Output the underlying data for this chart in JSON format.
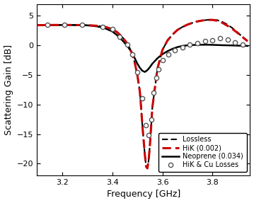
{
  "title": "",
  "xlabel": "Frequency [GHz]",
  "ylabel": "Scattering Gain [dB]",
  "xlim": [
    3.1,
    3.95
  ],
  "ylim": [
    -22,
    7
  ],
  "xticks": [
    3.2,
    3.4,
    3.6,
    3.8
  ],
  "yticks": [
    -20,
    -15,
    -10,
    -5,
    0,
    5
  ],
  "lossless_color": "#000000",
  "hik_color": "#cc0000",
  "neoprene_color": "#000000",
  "background": "#ffffff",
  "lossless_x": [
    3.1,
    3.13,
    3.16,
    3.19,
    3.22,
    3.25,
    3.28,
    3.31,
    3.34,
    3.37,
    3.4,
    3.42,
    3.44,
    3.46,
    3.47,
    3.48,
    3.49,
    3.5,
    3.51,
    3.515,
    3.52,
    3.525,
    3.53,
    3.535,
    3.54,
    3.545,
    3.55,
    3.56,
    3.58,
    3.6,
    3.62,
    3.64,
    3.66,
    3.68,
    3.7,
    3.72,
    3.74,
    3.76,
    3.78,
    3.8,
    3.82,
    3.84,
    3.86,
    3.88,
    3.9,
    3.92,
    3.94
  ],
  "lossless_y": [
    3.4,
    3.42,
    3.44,
    3.44,
    3.44,
    3.43,
    3.42,
    3.38,
    3.3,
    3.15,
    2.75,
    2.2,
    1.4,
    0.3,
    -0.5,
    -1.5,
    -3.0,
    -5.0,
    -7.8,
    -10.5,
    -13.5,
    -16.0,
    -18.5,
    -20.5,
    -20.8,
    -19.5,
    -17.0,
    -10.5,
    -4.0,
    -0.8,
    0.8,
    1.8,
    2.6,
    3.1,
    3.5,
    3.8,
    4.05,
    4.2,
    4.3,
    4.35,
    4.25,
    3.95,
    3.5,
    2.9,
    2.2,
    1.4,
    0.7
  ],
  "hik_x": [
    3.1,
    3.13,
    3.16,
    3.19,
    3.22,
    3.25,
    3.28,
    3.31,
    3.34,
    3.37,
    3.4,
    3.42,
    3.44,
    3.46,
    3.47,
    3.48,
    3.49,
    3.5,
    3.51,
    3.515,
    3.52,
    3.525,
    3.53,
    3.535,
    3.54,
    3.545,
    3.55,
    3.56,
    3.58,
    3.6,
    3.62,
    3.64,
    3.66,
    3.68,
    3.7,
    3.72,
    3.74,
    3.76,
    3.78,
    3.8,
    3.82,
    3.84,
    3.86,
    3.88,
    3.9,
    3.92,
    3.94
  ],
  "hik_y": [
    3.4,
    3.42,
    3.44,
    3.44,
    3.44,
    3.43,
    3.42,
    3.38,
    3.3,
    3.15,
    2.75,
    2.2,
    1.4,
    0.3,
    -0.5,
    -1.5,
    -3.0,
    -5.0,
    -7.8,
    -10.5,
    -13.5,
    -16.0,
    -18.5,
    -20.5,
    -20.8,
    -19.5,
    -17.0,
    -10.5,
    -4.0,
    -0.8,
    0.8,
    1.8,
    2.6,
    3.1,
    3.5,
    3.8,
    4.05,
    4.2,
    4.3,
    4.3,
    4.15,
    3.8,
    3.3,
    2.75,
    2.1,
    1.4,
    0.7
  ],
  "neoprene_x": [
    3.1,
    3.13,
    3.16,
    3.19,
    3.22,
    3.25,
    3.28,
    3.31,
    3.34,
    3.37,
    3.4,
    3.42,
    3.44,
    3.46,
    3.47,
    3.48,
    3.49,
    3.5,
    3.51,
    3.52,
    3.53,
    3.54,
    3.55,
    3.56,
    3.58,
    3.6,
    3.62,
    3.64,
    3.66,
    3.68,
    3.7,
    3.72,
    3.74,
    3.76,
    3.78,
    3.8,
    3.82,
    3.84,
    3.86,
    3.88,
    3.9,
    3.92,
    3.94
  ],
  "neoprene_y": [
    3.4,
    3.42,
    3.44,
    3.44,
    3.44,
    3.43,
    3.42,
    3.35,
    3.2,
    2.9,
    2.35,
    1.7,
    0.85,
    -0.1,
    -0.7,
    -1.4,
    -2.2,
    -3.1,
    -3.8,
    -4.3,
    -4.5,
    -4.2,
    -3.7,
    -3.1,
    -2.2,
    -1.5,
    -1.0,
    -0.6,
    -0.3,
    -0.1,
    0.0,
    0.05,
    0.08,
    0.1,
    0.1,
    0.08,
    0.05,
    0.02,
    0.0,
    -0.02,
    -0.05,
    -0.08,
    -0.1
  ],
  "scatter_x": [
    3.14,
    3.21,
    3.28,
    3.36,
    3.4,
    3.43,
    3.46,
    3.48,
    3.5,
    3.52,
    3.535,
    3.545,
    3.555,
    3.565,
    3.575,
    3.585,
    3.6,
    3.625,
    3.65,
    3.68,
    3.71,
    3.74,
    3.77,
    3.8,
    3.83,
    3.86,
    3.89,
    3.92
  ],
  "scatter_y": [
    3.44,
    3.44,
    3.43,
    3.15,
    2.75,
    1.5,
    0.1,
    -1.6,
    -4.5,
    -9.0,
    -13.5,
    -15.2,
    -12.5,
    -8.0,
    -5.5,
    -4.0,
    -2.5,
    -1.5,
    -0.8,
    -0.3,
    0.1,
    0.4,
    0.7,
    0.9,
    1.2,
    1.0,
    0.5,
    0.15
  ]
}
